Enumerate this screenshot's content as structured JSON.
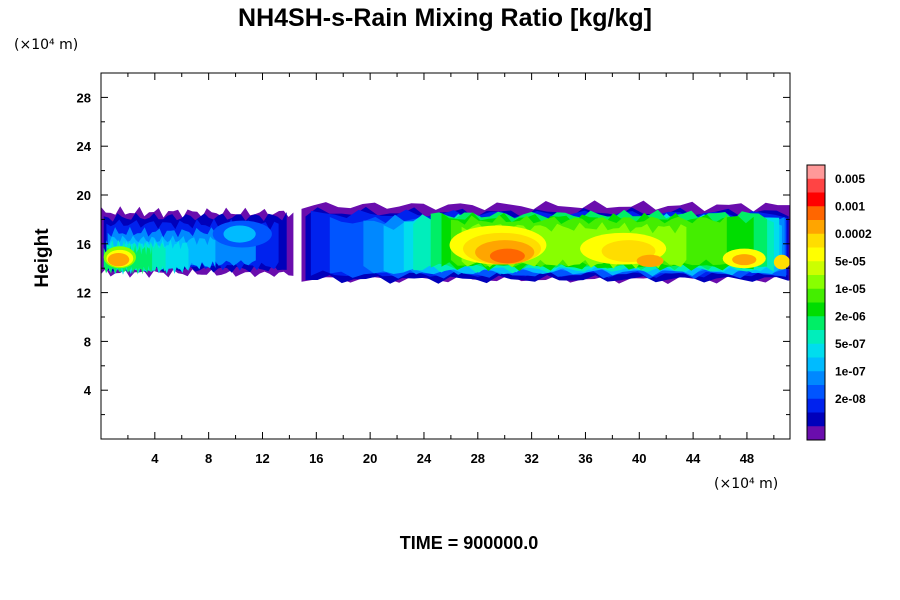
{
  "chart_data": {
    "type": "heatmap",
    "title": "NH4SH-s-Rain Mixing Ratio [kg/kg]",
    "ylabel": "Height",
    "xlabel": "",
    "x_unit": "(×10⁴ m)",
    "y_unit": "(×10⁴ m)",
    "xlim": [
      0,
      51.2
    ],
    "ylim": [
      0,
      30
    ],
    "x_ticks": [
      4,
      8,
      12,
      16,
      20,
      24,
      28,
      32,
      36,
      40,
      44,
      48
    ],
    "y_ticks": [
      4,
      8,
      12,
      16,
      20,
      24,
      28
    ],
    "time_label": "TIME = 900000.0",
    "colorbar": {
      "labels": [
        "0.005",
        "0.001",
        "0.0002",
        "5e-05",
        "1e-05",
        "2e-06",
        "5e-07",
        "1e-07",
        "2e-08"
      ],
      "colors": [
        "#ff9999",
        "#ff4444",
        "#ff0000",
        "#ff6600",
        "#ffa500",
        "#ffdd00",
        "#ffff00",
        "#ccff00",
        "#88ff00",
        "#44ee00",
        "#00dd00",
        "#00ee66",
        "#00eebb",
        "#00ddee",
        "#00bbff",
        "#0088ff",
        "#0055ff",
        "#0022ee",
        "#0000bb",
        "#6a0dad"
      ]
    },
    "layer": {
      "bottom_height": 13,
      "top_height": 19
    }
  }
}
